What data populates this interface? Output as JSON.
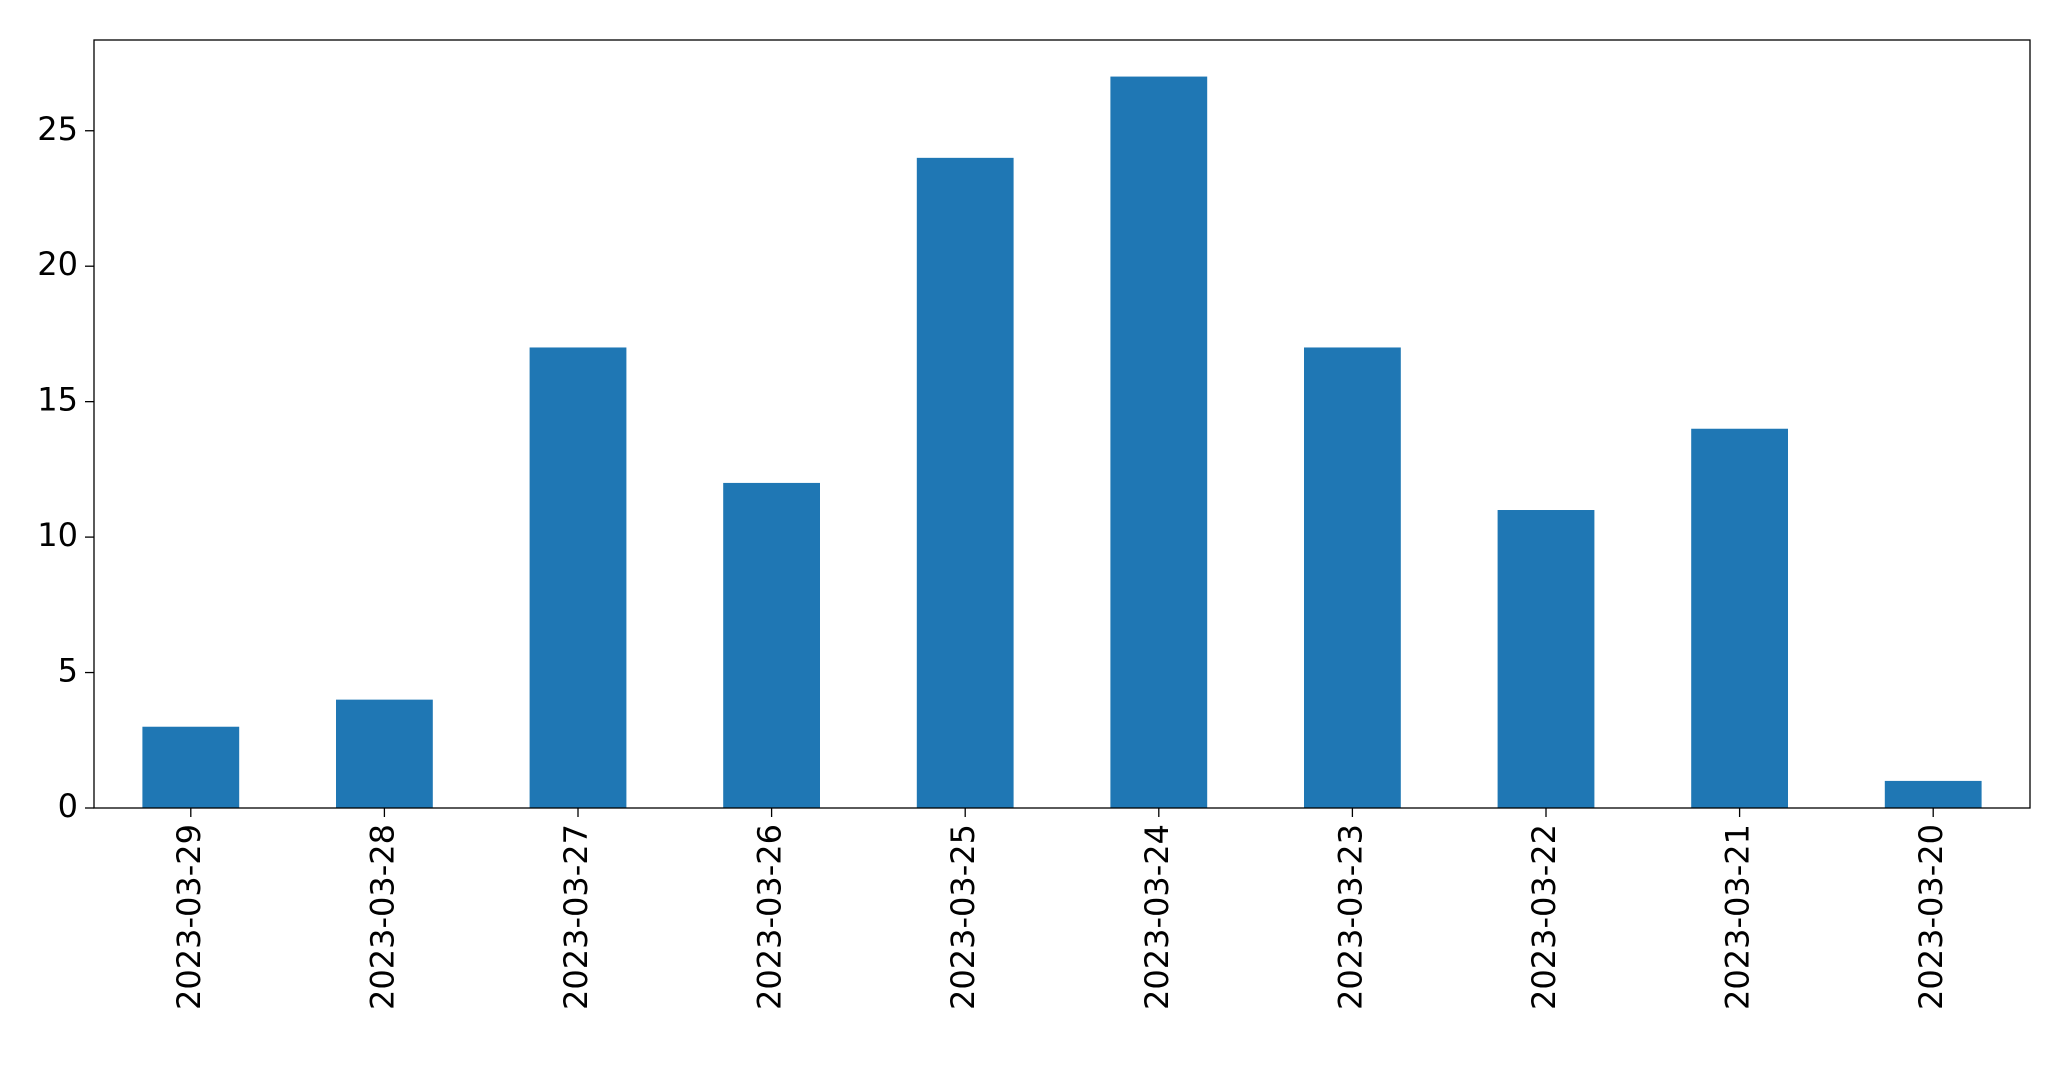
{
  "chart_data": {
    "type": "bar",
    "categories": [
      "2023-03-29",
      "2023-03-28",
      "2023-03-27",
      "2023-03-26",
      "2023-03-25",
      "2023-03-24",
      "2023-03-23",
      "2023-03-22",
      "2023-03-21",
      "2023-03-20"
    ],
    "values": [
      3,
      4,
      17,
      12,
      24,
      27,
      17,
      11,
      14,
      1
    ],
    "color": "#1f77b4",
    "ylim": [
      0,
      28.35
    ],
    "yticks": [
      0,
      5,
      10,
      15,
      20,
      25
    ],
    "grid": false
  }
}
